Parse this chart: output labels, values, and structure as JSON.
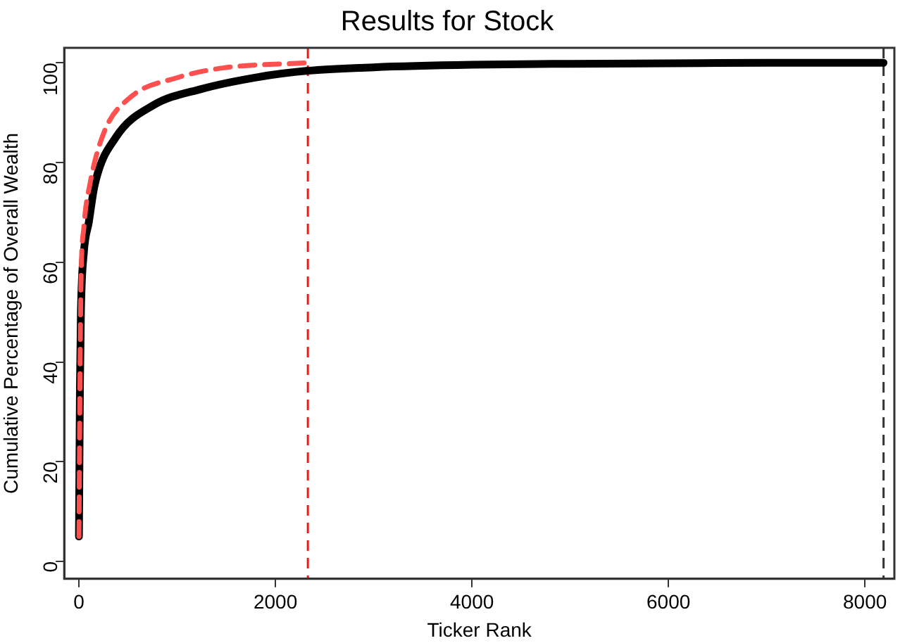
{
  "chart_data": {
    "type": "line",
    "title": "Results for Stock",
    "xlabel": "Ticker Rank",
    "ylabel": "Cumulative Percentage of Overall Wealth",
    "xlim": [
      -150,
      8300
    ],
    "ylim": [
      -3.5,
      103
    ],
    "xticks": [
      0,
      2000,
      4000,
      6000,
      8000
    ],
    "yticks": [
      0,
      20,
      40,
      60,
      80,
      100
    ],
    "grid": false,
    "series": [
      {
        "color": "#ff5050",
        "line_style": "dashed",
        "x": [
          0,
          5,
          10,
          20,
          50,
          110,
          254,
          518,
          997,
          1477,
          2330
        ],
        "values": [
          5,
          20,
          35,
          55,
          67,
          75.5,
          86,
          93,
          97,
          99,
          100
        ]
      },
      {
        "color": "#000000",
        "line_style": "solid",
        "x": [
          0,
          5,
          10,
          20,
          50,
          100,
          160,
          374,
          758,
          1237,
          1813,
          2330,
          3000,
          4000,
          5000,
          6000,
          7000,
          8190
        ],
        "values": [
          5,
          20,
          35,
          50,
          62,
          68,
          75.5,
          85,
          91.5,
          94.7,
          97.1,
          98.4,
          99.1,
          99.6,
          99.8,
          99.9,
          100,
          100
        ]
      }
    ],
    "ref_lines": [
      {
        "axis": "x",
        "value": 2330,
        "color": "#e02020",
        "line_style": "dashed"
      },
      {
        "axis": "x",
        "value": 8190,
        "color": "#333333",
        "line_style": "dashed"
      }
    ]
  }
}
